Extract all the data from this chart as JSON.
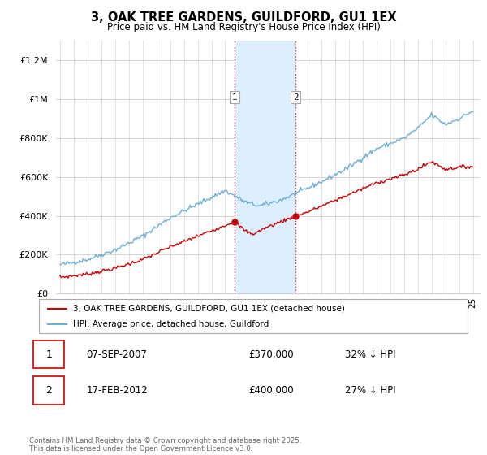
{
  "title": "3, OAK TREE GARDENS, GUILDFORD, GU1 1EX",
  "subtitle": "Price paid vs. HM Land Registry's House Price Index (HPI)",
  "legend_line1": "3, OAK TREE GARDENS, GUILDFORD, GU1 1EX (detached house)",
  "legend_line2": "HPI: Average price, detached house, Guildford",
  "footnote": "Contains HM Land Registry data © Crown copyright and database right 2025.\nThis data is licensed under the Open Government Licence v3.0.",
  "sale1_date": "07-SEP-2007",
  "sale1_price": "£370,000",
  "sale1_hpi": "32% ↓ HPI",
  "sale2_date": "17-FEB-2012",
  "sale2_price": "£400,000",
  "sale2_hpi": "27% ↓ HPI",
  "ylim": [
    0,
    1300000
  ],
  "yticks": [
    0,
    200000,
    400000,
    600000,
    800000,
    1000000,
    1200000
  ],
  "ytick_labels": [
    "£0",
    "£200K",
    "£400K",
    "£600K",
    "£800K",
    "£1M",
    "£1.2M"
  ],
  "sale1_x": 2007.67,
  "sale2_x": 2012.12,
  "sale1_price_val": 370000,
  "sale2_price_val": 400000,
  "hpi_color": "#6baed6",
  "property_color": "#cc0000",
  "shade_color": "#ddeeff",
  "marker_color": "#cc0000",
  "grid_color": "#cccccc",
  "background_color": "#ffffff",
  "hpi_waypoints_x": [
    1995,
    1997,
    1999,
    2001,
    2003,
    2005,
    2007,
    2008.5,
    2009.5,
    2011,
    2012,
    2014,
    2016,
    2017,
    2018,
    2020,
    2021,
    2022,
    2023,
    2024,
    2025
  ],
  "hpi_waypoints_y": [
    148000,
    175000,
    225000,
    295000,
    390000,
    460000,
    530000,
    470000,
    450000,
    480000,
    510000,
    575000,
    650000,
    700000,
    745000,
    800000,
    850000,
    920000,
    870000,
    900000,
    940000
  ],
  "prop_waypoints_x": [
    1995,
    1997,
    1999,
    2001,
    2003,
    2005,
    2007.67,
    2008.5,
    2009,
    2010,
    2012.12,
    2013,
    2014,
    2016,
    2018,
    2020,
    2021,
    2022,
    2023,
    2024,
    2025
  ],
  "prop_waypoints_y": [
    83000,
    100000,
    130000,
    175000,
    240000,
    295000,
    370000,
    320000,
    305000,
    340000,
    400000,
    420000,
    450000,
    510000,
    570000,
    610000,
    640000,
    680000,
    640000,
    650000,
    655000
  ]
}
